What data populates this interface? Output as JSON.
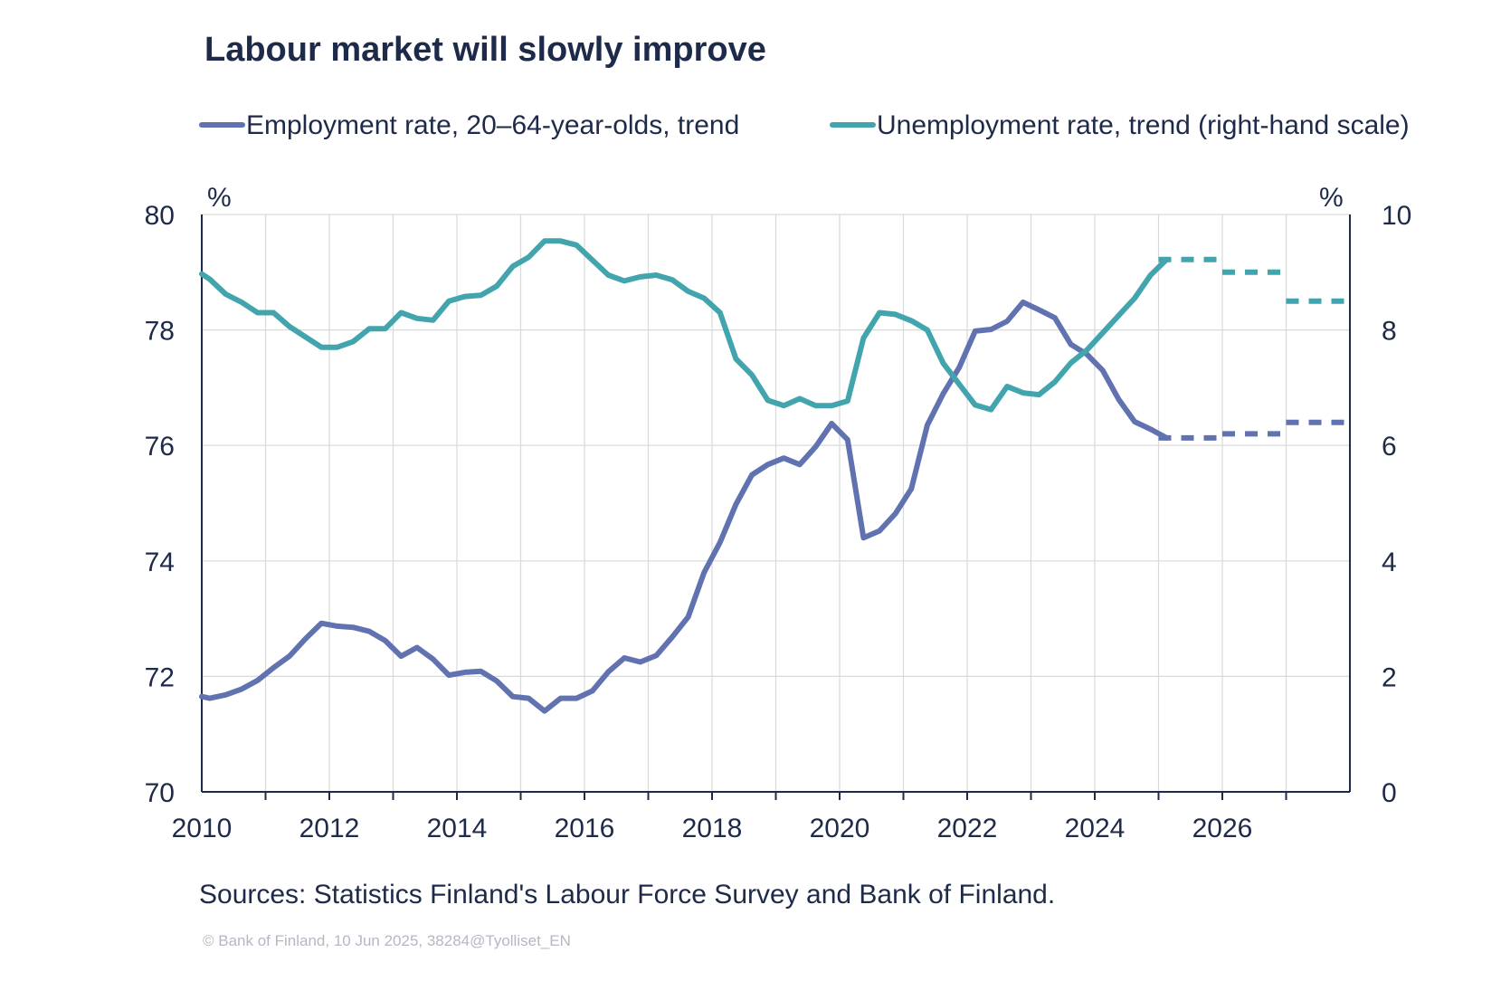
{
  "title": "Labour market will slowly improve",
  "legend": [
    {
      "label": "Employment rate, 20–64-year-olds, trend",
      "color": "#6172b0"
    },
    {
      "label": "Unemployment rate, trend (right-hand scale)",
      "color": "#42a4ad"
    }
  ],
  "left_unit": "%",
  "right_unit": "%",
  "source": "Sources: Statistics Finland's Labour Force Survey and Bank of Finland.",
  "credit": "© Bank of Finland, 10 Jun 2025, 38284@Tyolliset_EN",
  "chart_data": {
    "type": "line",
    "xlim": [
      2010,
      2028
    ],
    "x_ticks": [
      "2010",
      "2012",
      "2014",
      "2016",
      "2018",
      "2020",
      "2022",
      "2024",
      "2026"
    ],
    "y_left": {
      "ylim": [
        70,
        80
      ],
      "ticks": [
        "70",
        "72",
        "74",
        "76",
        "78",
        "80"
      ],
      "unit": "%"
    },
    "y_right": {
      "ylim": [
        0,
        10
      ],
      "ticks": [
        "0",
        "2",
        "4",
        "6",
        "8",
        "10"
      ],
      "unit": "%"
    },
    "grid": true,
    "legend_position": "top",
    "series": [
      {
        "name": "Employment rate, 20–64-year-olds, trend",
        "axis": "left",
        "color": "#6172b0",
        "x": [
          2010.0,
          2010.125,
          2010.375,
          2010.625,
          2010.875,
          2011.125,
          2011.375,
          2011.625,
          2011.875,
          2012.125,
          2012.375,
          2012.625,
          2012.875,
          2013.125,
          2013.375,
          2013.625,
          2013.875,
          2014.125,
          2014.375,
          2014.625,
          2014.875,
          2015.125,
          2015.375,
          2015.625,
          2015.875,
          2016.125,
          2016.375,
          2016.625,
          2016.875,
          2017.125,
          2017.375,
          2017.625,
          2017.875,
          2018.125,
          2018.375,
          2018.625,
          2018.875,
          2019.125,
          2019.375,
          2019.625,
          2019.875,
          2020.125,
          2020.375,
          2020.625,
          2020.875,
          2021.125,
          2021.375,
          2021.625,
          2021.875,
          2022.125,
          2022.375,
          2022.625,
          2022.875,
          2023.125,
          2023.375,
          2023.625,
          2023.875,
          2024.125,
          2024.375,
          2024.625,
          2024.875,
          2025.125
        ],
        "y": [
          71.65,
          71.62,
          71.68,
          71.78,
          71.93,
          72.15,
          72.35,
          72.65,
          72.92,
          72.87,
          72.85,
          72.78,
          72.62,
          72.35,
          72.5,
          72.3,
          72.02,
          72.07,
          72.09,
          71.92,
          71.65,
          71.62,
          71.4,
          71.62,
          71.62,
          71.75,
          72.08,
          72.32,
          72.25,
          72.36,
          72.68,
          73.03,
          73.8,
          74.32,
          74.98,
          75.49,
          75.67,
          75.78,
          75.67,
          75.98,
          76.38,
          76.1,
          74.4,
          74.52,
          74.82,
          75.25,
          76.35,
          76.9,
          77.35,
          77.98,
          78.01,
          78.15,
          78.48,
          78.35,
          78.21,
          77.75,
          77.58,
          77.3,
          76.8,
          76.41,
          76.28,
          76.13
        ],
        "forecast": [
          {
            "x": [
              2025.0,
              2026.0
            ],
            "y": [
              76.13,
              76.13
            ]
          },
          {
            "x": [
              2026.0,
              2027.0
            ],
            "y": [
              76.2,
              76.2
            ]
          },
          {
            "x": [
              2027.0,
              2028.0
            ],
            "y": [
              76.4,
              76.4
            ]
          }
        ]
      },
      {
        "name": "Unemployment rate, trend (right-hand scale)",
        "axis": "right",
        "color": "#42a4ad",
        "x": [
          2010.0,
          2010.125,
          2010.375,
          2010.625,
          2010.875,
          2011.125,
          2011.375,
          2011.625,
          2011.875,
          2012.125,
          2012.375,
          2012.625,
          2012.875,
          2013.125,
          2013.375,
          2013.625,
          2013.875,
          2014.125,
          2014.375,
          2014.625,
          2014.875,
          2015.125,
          2015.375,
          2015.625,
          2015.875,
          2016.125,
          2016.375,
          2016.625,
          2016.875,
          2017.125,
          2017.375,
          2017.625,
          2017.875,
          2018.125,
          2018.375,
          2018.625,
          2018.875,
          2019.125,
          2019.375,
          2019.625,
          2019.875,
          2020.125,
          2020.375,
          2020.625,
          2020.875,
          2021.125,
          2021.375,
          2021.625,
          2021.875,
          2022.125,
          2022.375,
          2022.625,
          2022.875,
          2023.125,
          2023.375,
          2023.625,
          2023.875,
          2024.125,
          2024.375,
          2024.625,
          2024.875,
          2025.125
        ],
        "y": [
          8.97,
          8.88,
          8.62,
          8.48,
          8.3,
          8.3,
          8.06,
          7.88,
          7.7,
          7.7,
          7.8,
          8.02,
          8.02,
          8.3,
          8.2,
          8.17,
          8.5,
          8.58,
          8.6,
          8.76,
          9.1,
          9.26,
          9.54,
          9.54,
          9.47,
          9.21,
          8.95,
          8.85,
          8.92,
          8.95,
          8.87,
          8.67,
          8.55,
          8.3,
          7.5,
          7.22,
          6.78,
          6.69,
          6.81,
          6.69,
          6.69,
          6.77,
          7.86,
          8.3,
          8.27,
          8.16,
          8.0,
          7.42,
          7.06,
          6.7,
          6.62,
          7.02,
          6.91,
          6.88,
          7.1,
          7.43,
          7.65,
          7.95,
          8.25,
          8.55,
          8.95,
          9.22
        ],
        "forecast": [
          {
            "x": [
              2025.0,
              2026.0
            ],
            "y": [
              9.22,
              9.22
            ]
          },
          {
            "x": [
              2026.0,
              2027.0
            ],
            "y": [
              9.0,
              9.0
            ]
          },
          {
            "x": [
              2027.0,
              2028.0
            ],
            "y": [
              8.5,
              8.5
            ]
          }
        ]
      }
    ]
  }
}
